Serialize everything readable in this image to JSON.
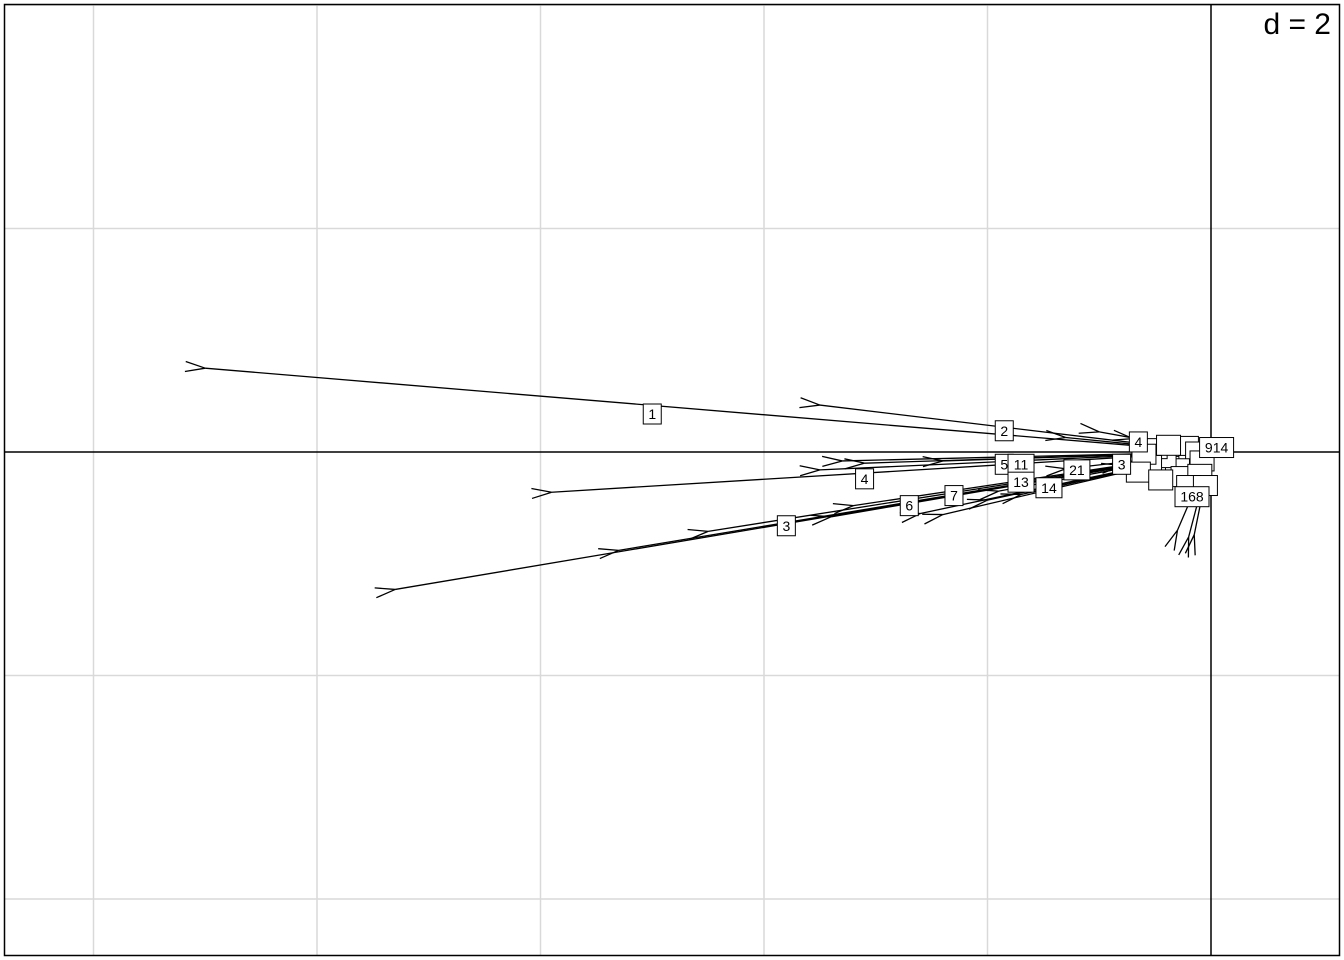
{
  "chart_data": {
    "type": "scatter",
    "subtype": "arrow-biplot",
    "scale_label": "d = 2",
    "grid": true,
    "grid_step": 2,
    "xlim": [
      -10.8,
      1.2
    ],
    "ylim": [
      -4.5,
      4.0
    ],
    "origin": [
      0,
      0
    ],
    "arrows": [
      {
        "label": "1",
        "x": -9.0,
        "y": 0.75
      },
      {
        "label": "2",
        "x": -3.5,
        "y": 0.42
      },
      {
        "label": "3",
        "x": -7.3,
        "y": -1.23
      },
      {
        "label": "4",
        "x": -5.9,
        "y": -0.36
      },
      {
        "label": "5",
        "x": -2.4,
        "y": -0.08
      },
      {
        "label": "6",
        "x": -3.2,
        "y": -0.48
      },
      {
        "label": "7",
        "x": -2.6,
        "y": -0.55
      },
      {
        "label": "11",
        "x": -3.1,
        "y": -0.1
      },
      {
        "label": "13",
        "x": -1.9,
        "y": -0.35
      },
      {
        "label": "14",
        "x": -1.7,
        "y": -0.38
      },
      {
        "label": "21",
        "x": -1.3,
        "y": -0.15
      },
      {
        "label": "3",
        "x": -0.8,
        "y": -0.12
      },
      {
        "label": "4",
        "x": -0.7,
        "y": 0.12
      },
      {
        "label": "",
        "x": -5.3,
        "y": -0.88
      },
      {
        "label": "",
        "x": -4.5,
        "y": -0.71
      },
      {
        "label": "",
        "x": -3.4,
        "y": -0.58
      },
      {
        "label": "",
        "x": -3.3,
        "y": -0.08
      },
      {
        "label": "",
        "x": -3.5,
        "y": -0.16
      },
      {
        "label": "",
        "x": -2.4,
        "y": -0.56
      },
      {
        "label": "",
        "x": -2.0,
        "y": -0.43
      },
      {
        "label": "",
        "x": -1.3,
        "y": 0.13
      },
      {
        "label": "",
        "x": -1.0,
        "y": 0.18
      },
      {
        "label": "",
        "x": -0.2,
        "y": -0.76
      },
      {
        "label": "",
        "x": -0.15,
        "y": -0.74
      },
      {
        "label": "",
        "x": -0.3,
        "y": -0.7
      }
    ],
    "labels": [
      {
        "text": "1",
        "x": -5.0,
        "y": 0.34
      },
      {
        "text": "2",
        "x": -1.85,
        "y": 0.19
      },
      {
        "text": "3",
        "x": -3.8,
        "y": -0.66
      },
      {
        "text": "4",
        "x": -3.1,
        "y": -0.24
      },
      {
        "text": "5",
        "x": -1.85,
        "y": -0.11
      },
      {
        "text": "11",
        "x": -1.7,
        "y": -0.11
      },
      {
        "text": "13",
        "x": -1.7,
        "y": -0.27
      },
      {
        "text": "14",
        "x": -1.45,
        "y": -0.32
      },
      {
        "text": "6",
        "x": -2.7,
        "y": -0.48
      },
      {
        "text": "7",
        "x": -2.3,
        "y": -0.39
      },
      {
        "text": "21",
        "x": -1.2,
        "y": -0.16
      },
      {
        "text": "3",
        "x": -0.8,
        "y": -0.11
      },
      {
        "text": "4",
        "x": -0.65,
        "y": 0.09
      },
      {
        "text": "914",
        "x": 0.05,
        "y": 0.04
      },
      {
        "text": "168",
        "x": -0.17,
        "y": -0.4
      }
    ]
  }
}
